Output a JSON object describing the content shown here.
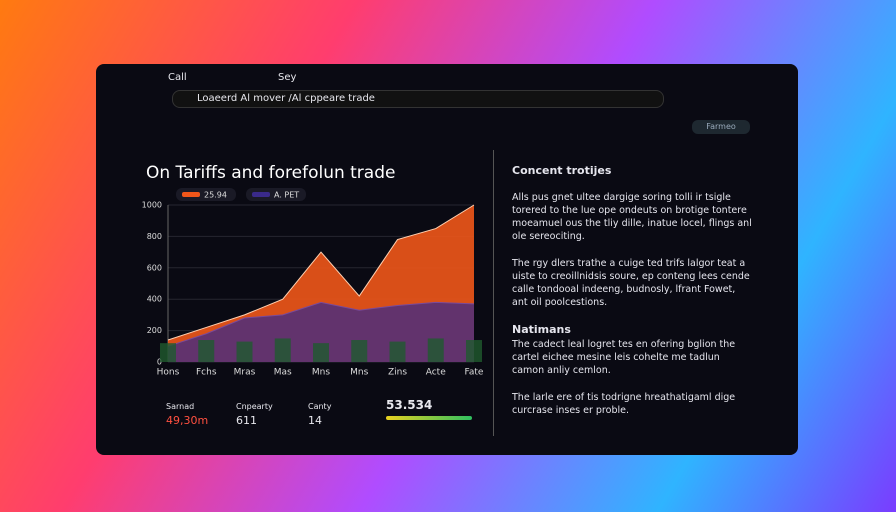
{
  "browser": {
    "tabs": [
      "Call",
      "Sey"
    ],
    "address": "Loaeerd Al mover /Al cppeare trade",
    "button": "Farmeo"
  },
  "chart_data": {
    "type": "area",
    "title": "On Tariffs and forefolun trade",
    "categories": [
      "Hons",
      "Fchs",
      "Mras",
      "Mas",
      "Mns",
      "Mns",
      "Zins",
      "Acte",
      "Fate"
    ],
    "series": [
      {
        "name": "25.94",
        "color": "#f0561a",
        "values": [
          140,
          220,
          300,
          400,
          700,
          420,
          780,
          850,
          1000
        ]
      },
      {
        "name": "A. PET",
        "color": "#3a2a8a",
        "values": [
          100,
          180,
          280,
          300,
          380,
          330,
          360,
          380,
          370
        ]
      },
      {
        "color": "#1f5a2e",
        "values": [
          120,
          140,
          130,
          150,
          120,
          140,
          130,
          150,
          140
        ]
      }
    ],
    "ylim": [
      0,
      1000
    ],
    "yticks": [
      0,
      200,
      400,
      600,
      800,
      1000
    ],
    "grid": true
  },
  "stats": [
    {
      "label": "Sarnad",
      "value": "49,30m"
    },
    {
      "label": "Cnpearty",
      "value": "611"
    },
    {
      "label": "Canty",
      "value": "14"
    },
    {
      "value": "53.534"
    }
  ],
  "sidebar": {
    "heading": "Concent trotijes",
    "paragraphs": [
      "Alls pus gnet ultee dargige soring tolli ir tsigle torered to the lue ope ondeuts on brotige tontere moeamuel ous the tliy dille, inatue locel, flings anl ole sereociting.",
      "The rgy dlers trathe a cuige ted trifs lalgor teat a uiste to creoillnidsis soure, ep conteng lees cende calle tondooal indeeng, budnosly, lfrant Fowet, ant oil poolcestions."
    ],
    "heading2": "Natimans",
    "paragraphs2": [
      "The cadect leal logret tes en ofering bglion the cartel eichee mesine leis cohelte me tadlun camon anliy cemlon.",
      "The larle ere of tis todrigne hreathatigaml dige curcrase inses er proble."
    ]
  }
}
